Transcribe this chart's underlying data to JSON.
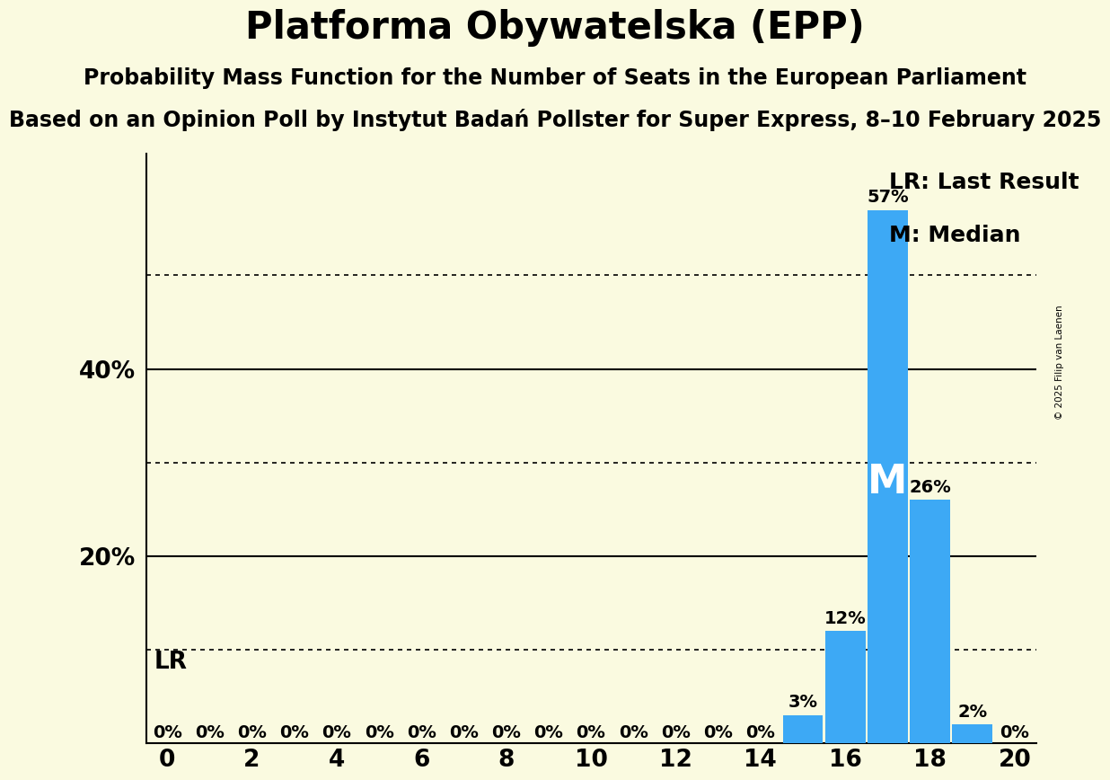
{
  "title": "Platforma Obywatelska (EPP)",
  "subtitle1": "Probability Mass Function for the Number of Seats in the European Parliament",
  "subtitle2": "Based on an Opinion Poll by Instytut Badań Pollster for Super Express, 8–10 February 2025",
  "copyright": "© 2025 Filip van Laenen",
  "seats": [
    0,
    1,
    2,
    3,
    4,
    5,
    6,
    7,
    8,
    9,
    10,
    11,
    12,
    13,
    14,
    15,
    16,
    17,
    18,
    19,
    20
  ],
  "probabilities": [
    0,
    0,
    0,
    0,
    0,
    0,
    0,
    0,
    0,
    0,
    0,
    0,
    0,
    0,
    0,
    3,
    12,
    57,
    26,
    2,
    0
  ],
  "last_result_seat": 17,
  "median_seat": 17,
  "bar_color": "#3da9f5",
  "background_color": "#fafae0",
  "xlim": [
    -0.5,
    20.5
  ],
  "ylim": [
    0,
    63
  ],
  "ylabel_solid": [
    20,
    40
  ],
  "ylabel_dotted": [
    10,
    30,
    50
  ],
  "title_fontsize": 30,
  "subtitle1_fontsize": 17,
  "subtitle2_fontsize": 17,
  "tick_fontsize": 19,
  "legend_fontsize": 18,
  "bar_label_fontsize": 14,
  "lr_label_fontsize": 19,
  "m_fontsize": 32
}
